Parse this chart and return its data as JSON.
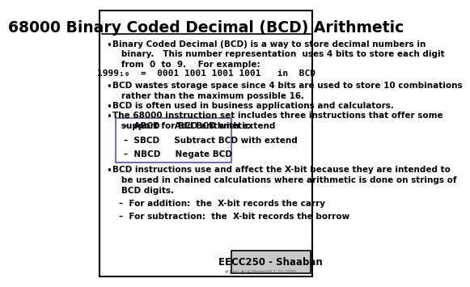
{
  "title": "68000 Binary Coded Decimal (BCD) Arithmetic",
  "background_color": "#ffffff",
  "border_color": "#000000",
  "title_fontsize": 13.5,
  "body_fontsize": 7.5,
  "bullet_items": [
    "Binary Coded Decimal (BCD) is a way to store decimal numbers in\n   binary.   This number representation  uses 4 bits to store each digit\n   from  0  to  9.    For example:",
    "BCD wastes storage space since 4 bits are used to store 10 combinations\n   rather than the maximum possible 16.",
    "BCD is often used in business applications and calculators.",
    "The 68000 instruction set includes three instructions that offer some\n   support for BCD arithmetic:"
  ],
  "bcd_line": "1999₁₀  =  0001 1001 1001 1001   in  BCD",
  "box_items": [
    "–  ABCD     Add BCD with extend",
    "–  SBCD     Subtract BCD with extend",
    "–  NBCD     Negate BCD"
  ],
  "last_bullet": "BCD instructions use and affect the X-bit because they are intended to\n   be used in chained calculations where arithmetic is done on strings of\n   BCD digits.",
  "sub_items": [
    "–  For addition:  the  X-bit records the carry",
    "–  For subtraction:  the  X-bit records the borrow"
  ],
  "footer_main": "EECC250 - Shaaban",
  "footer_sub": "#1 lec #14 Winter99 1-20-2000",
  "footer_bg": "#c8c8c8",
  "box_border_color": "#5555aa"
}
